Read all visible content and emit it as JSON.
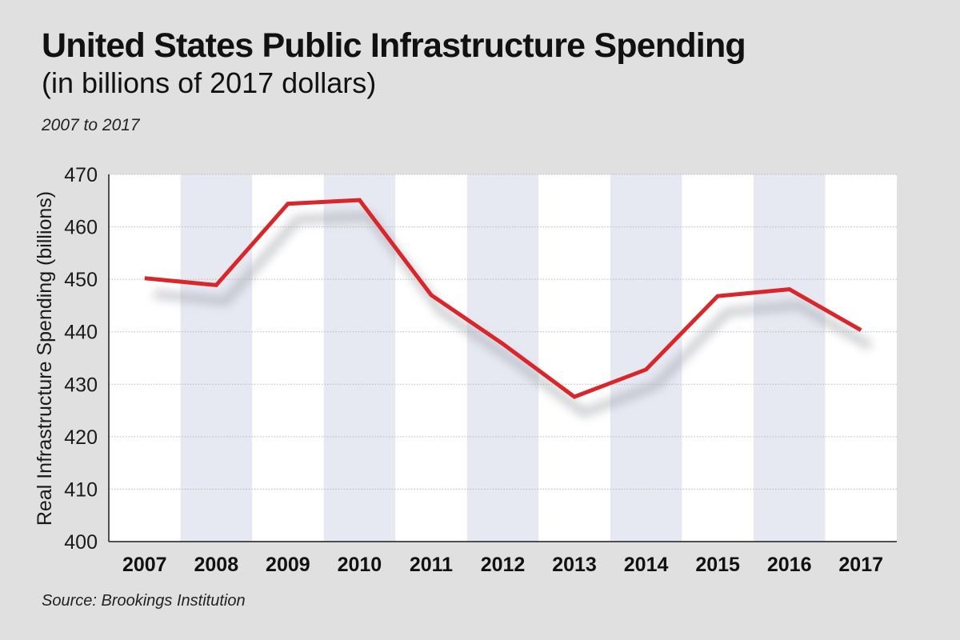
{
  "header": {
    "title": "United States Public Infrastructure Spending",
    "subtitle": "(in billions of 2017 dollars)",
    "period": "2007 to 2017"
  },
  "footer": {
    "source": "Source: Brookings Institution"
  },
  "colors": {
    "background": "#e0e0e0",
    "plot_white": "#ffffff",
    "band": "#e6e9f1",
    "line": "#d9262b",
    "shadow": "#9a9ca4",
    "grid": "#b8b8b8"
  },
  "chart_data": {
    "type": "line",
    "title": "United States Public Infrastructure Spending",
    "subtitle": "(in billions of 2017 dollars)",
    "xlabel": "",
    "ylabel": "Real Infrastructure Spending (billions)",
    "categories": [
      "2007",
      "2008",
      "2009",
      "2010",
      "2011",
      "2012",
      "2013",
      "2014",
      "2015",
      "2016",
      "2017"
    ],
    "series": [
      {
        "name": "Real Infrastructure Spending",
        "values": [
          450.2,
          448.9,
          464.4,
          465.1,
          447.0,
          437.7,
          427.6,
          432.8,
          446.8,
          448.1,
          440.3
        ]
      }
    ],
    "ylim": [
      400,
      470
    ],
    "yticks": [
      400,
      410,
      420,
      430,
      440,
      450,
      460,
      470
    ],
    "grid": true,
    "alternating_bands": true
  }
}
